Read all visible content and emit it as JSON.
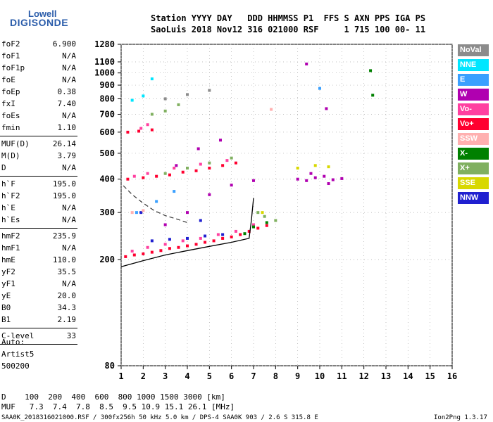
{
  "logo": {
    "line1": "Lowell",
    "line2": "DIGISONDE"
  },
  "header": {
    "line1": "Station YYYY DAY   DDD HHMMSS P1  FFS S AXN PPS IGA PS",
    "line2": "SaoLuis 2018 Nov12 316 021000 RSF     1 715 100 00- 11"
  },
  "params": {
    "group1": [
      {
        "name": "foF2",
        "value": "6.900"
      },
      {
        "name": "foF1",
        "value": "N/A"
      },
      {
        "name": "foF1p",
        "value": "N/A"
      },
      {
        "name": "foE",
        "value": "N/A"
      },
      {
        "name": "foEp",
        "value": "0.38"
      },
      {
        "name": "fxI",
        "value": "7.40"
      },
      {
        "name": "foEs",
        "value": "N/A"
      },
      {
        "name": "fmin",
        "value": "1.10"
      }
    ],
    "group2": [
      {
        "name": "MUF(D)",
        "value": "26.14"
      },
      {
        "name": "M(D)",
        "value": "3.79"
      },
      {
        "name": "D",
        "value": "N/A"
      }
    ],
    "group3": [
      {
        "name": "h`F",
        "value": "195.0"
      },
      {
        "name": "h`F2",
        "value": "195.0"
      },
      {
        "name": "h`E",
        "value": "N/A"
      },
      {
        "name": "h`Es",
        "value": "N/A"
      }
    ],
    "group4": [
      {
        "name": "hmF2",
        "value": "235.9"
      },
      {
        "name": "hmF1",
        "value": "N/A"
      },
      {
        "name": "hmE",
        "value": "110.0"
      },
      {
        "name": "yF2",
        "value": "35.5"
      },
      {
        "name": "yF1",
        "value": "N/A"
      },
      {
        "name": "yE",
        "value": "20.0"
      },
      {
        "name": "B0",
        "value": "34.3"
      },
      {
        "name": "B1",
        "value": "2.19"
      }
    ],
    "group5": [
      {
        "name": "C-level",
        "value": "33"
      }
    ]
  },
  "scaler": {
    "line1": "Auto:",
    "line2": "Artist5",
    "line3": "500200"
  },
  "legend": [
    {
      "label": "NoVal",
      "color": "#8c8c8c"
    },
    {
      "label": "NNE",
      "color": "#00e6ff"
    },
    {
      "label": "E",
      "color": "#3aa0ff"
    },
    {
      "label": "W",
      "color": "#b000b0"
    },
    {
      "label": "Vo-",
      "color": "#ff40a0"
    },
    {
      "label": "Vo+",
      "color": "#ff0030"
    },
    {
      "label": "SSW",
      "color": "#ffb0b0"
    },
    {
      "label": "X-",
      "color": "#008000"
    },
    {
      "label": "X+",
      "color": "#80b060"
    },
    {
      "label": "SSE",
      "color": "#d8d800"
    },
    {
      "label": "NNW",
      "color": "#2020d0"
    }
  ],
  "footer": {
    "distance_row": "D    100  200  400  600  800 1000 1500 3000 [km]",
    "muf_row": "MUF   7.3  7.4  7.8  8.5  9.5 10.9 15.1 26.1 [MHz]",
    "info_left": "SAA0K_2018316021000.RSF / 300fx256h 50 kHz 5.0 km / DPS-4 SAA0K 903 / 2.6 S 315.8 E",
    "info_right": "Ion2Png 1.3.17"
  },
  "chart_data": {
    "type": "scatter",
    "title": "",
    "xlabel": "",
    "ylabel": "",
    "xlim": [
      1,
      16
    ],
    "ylim": [
      80,
      1280
    ],
    "yscale": "log",
    "x_ticks": [
      "1",
      "2",
      "3",
      "4",
      "5",
      "6",
      "7",
      "8",
      "9",
      "10",
      "11",
      "12",
      "13",
      "14",
      "15",
      "16"
    ],
    "y_ticks": [
      "80",
      "200",
      "300",
      "400",
      "500",
      "600",
      "700",
      "800",
      "900",
      "1000",
      "1100",
      "1280"
    ],
    "grid": true,
    "legend_position": "right",
    "series": [
      {
        "name": "Vo+",
        "points": [
          [
            1.2,
            205
          ],
          [
            1.6,
            208
          ],
          [
            2.0,
            210
          ],
          [
            2.4,
            213
          ],
          [
            2.8,
            216
          ],
          [
            3.2,
            220
          ],
          [
            3.6,
            222
          ],
          [
            4.0,
            225
          ],
          [
            4.4,
            228
          ],
          [
            4.8,
            232
          ],
          [
            5.2,
            235
          ],
          [
            5.6,
            240
          ],
          [
            6.0,
            243
          ],
          [
            6.4,
            248
          ],
          [
            6.8,
            255
          ],
          [
            7.2,
            262
          ],
          [
            7.6,
            268
          ],
          [
            1.3,
            400
          ],
          [
            2.0,
            405
          ],
          [
            2.6,
            410
          ],
          [
            3.2,
            415
          ],
          [
            3.8,
            425
          ],
          [
            4.4,
            430
          ],
          [
            5.0,
            440
          ],
          [
            5.6,
            450
          ],
          [
            6.2,
            460
          ],
          [
            1.3,
            600
          ],
          [
            1.8,
            605
          ],
          [
            2.4,
            612
          ]
        ]
      },
      {
        "name": "Vo-",
        "points": [
          [
            1.5,
            215
          ],
          [
            2.2,
            222
          ],
          [
            3.0,
            228
          ],
          [
            3.8,
            235
          ],
          [
            4.6,
            240
          ],
          [
            5.4,
            248
          ],
          [
            6.2,
            255
          ],
          [
            7.0,
            270
          ],
          [
            2.2,
            420
          ],
          [
            3.4,
            440
          ],
          [
            4.6,
            455
          ],
          [
            5.8,
            470
          ],
          [
            1.6,
            410
          ],
          [
            1.9,
            620
          ],
          [
            2.2,
            640
          ]
        ]
      },
      {
        "name": "W",
        "points": [
          [
            9.0,
            400
          ],
          [
            9.4,
            395
          ],
          [
            9.8,
            405
          ],
          [
            10.2,
            410
          ],
          [
            10.6,
            398
          ],
          [
            11.0,
            402
          ],
          [
            9.6,
            420
          ],
          [
            10.4,
            385
          ],
          [
            3.0,
            270
          ],
          [
            4.0,
            300
          ],
          [
            5.0,
            350
          ],
          [
            6.0,
            380
          ],
          [
            7.0,
            395
          ],
          [
            3.5,
            450
          ],
          [
            4.5,
            520
          ],
          [
            5.5,
            560
          ],
          [
            9.4,
            1080
          ],
          [
            10.3,
            735
          ]
        ]
      },
      {
        "name": "X+",
        "points": [
          [
            3.0,
            420
          ],
          [
            4.0,
            440
          ],
          [
            5.0,
            460
          ],
          [
            6.0,
            480
          ],
          [
            7.2,
            300
          ],
          [
            7.5,
            290
          ],
          [
            8.0,
            280
          ],
          [
            2.4,
            700
          ],
          [
            3.0,
            720
          ],
          [
            3.6,
            760
          ]
        ]
      },
      {
        "name": "X-",
        "points": [
          [
            6.6,
            250
          ],
          [
            7.0,
            265
          ],
          [
            7.6,
            275
          ],
          [
            12.3,
            1020
          ],
          [
            12.4,
            825
          ]
        ]
      },
      {
        "name": "SSE",
        "points": [
          [
            9.0,
            440
          ],
          [
            9.8,
            450
          ],
          [
            10.4,
            445
          ],
          [
            7.4,
            300
          ]
        ]
      },
      {
        "name": "NNW",
        "points": [
          [
            2.4,
            235
          ],
          [
            3.2,
            238
          ],
          [
            4.0,
            240
          ],
          [
            4.8,
            245
          ],
          [
            5.6,
            248
          ],
          [
            4.6,
            280
          ],
          [
            1.9,
            300
          ]
        ]
      },
      {
        "name": "E",
        "points": [
          [
            1.7,
            300
          ],
          [
            2.6,
            330
          ],
          [
            3.4,
            360
          ],
          [
            10.0,
            875
          ]
        ]
      },
      {
        "name": "NNE",
        "points": [
          [
            2.4,
            950
          ],
          [
            1.5,
            790
          ],
          [
            2.0,
            820
          ]
        ]
      },
      {
        "name": "SSW",
        "points": [
          [
            1.5,
            300
          ],
          [
            2.0,
            305
          ],
          [
            7.8,
            730
          ]
        ]
      },
      {
        "name": "NoVal",
        "points": [
          [
            3.0,
            800
          ],
          [
            4.0,
            830
          ],
          [
            5.0,
            860
          ]
        ]
      }
    ],
    "trace_solid": [
      [
        1.0,
        188
      ],
      [
        2.0,
        198
      ],
      [
        3.0,
        208
      ],
      [
        4.0,
        216
      ],
      [
        5.0,
        224
      ],
      [
        6.0,
        232
      ],
      [
        6.8,
        240
      ],
      [
        6.9,
        280
      ],
      [
        7.0,
        340
      ]
    ],
    "trace_dashed": [
      [
        1.1,
        378
      ],
      [
        1.5,
        350
      ],
      [
        2.0,
        325
      ],
      [
        2.5,
        305
      ],
      [
        3.0,
        292
      ],
      [
        3.5,
        284
      ],
      [
        4.0,
        275
      ]
    ]
  }
}
